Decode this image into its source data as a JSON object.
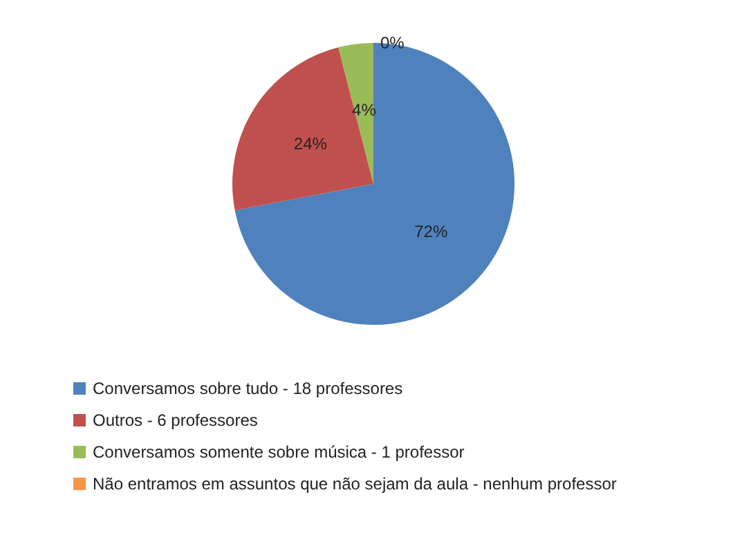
{
  "chart_data": {
    "type": "pie",
    "categories": [
      "Conversamos sobre tudo - 18 professores",
      "Outros - 6 professores",
      "Conversamos somente sobre música - 1 professor",
      "Não entramos em assuntos que não sejam da aula - nenhum professor"
    ],
    "values": [
      72,
      24,
      4,
      0
    ],
    "colors": [
      "#4f81bd",
      "#c0504d",
      "#9bbb59",
      "#f79646"
    ],
    "value_labels": [
      "72%",
      "24%",
      "4%",
      "0%"
    ],
    "legend": "bottom"
  }
}
